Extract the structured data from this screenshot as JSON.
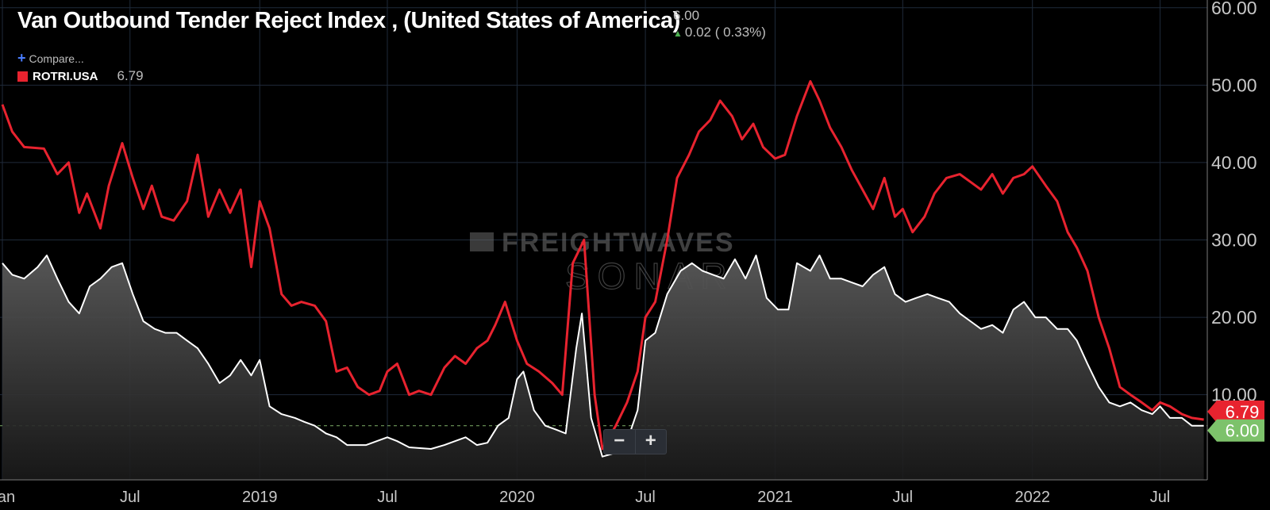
{
  "header": {
    "title": "Van Outbound Tender Reject Index , (United States of America)",
    "last_value": "6.00",
    "change": "0.02 ( 0.33%)",
    "compare_label": "Compare...",
    "legend_symbol": "ROTRI.USA",
    "legend_value": "6.79"
  },
  "watermark": {
    "line1": "FREIGHTWAVES",
    "line2": "SONAR"
  },
  "zoom": {
    "minus": "−",
    "plus": "+"
  },
  "chart_data": {
    "type": "line",
    "x_range": [
      "2018-01-01",
      "2022-09-06"
    ],
    "x_ticks": [
      {
        "date": "2018-01-01",
        "label": "Jan"
      },
      {
        "date": "2018-07-01",
        "label": "Jul"
      },
      {
        "date": "2019-01-01",
        "label": "2019"
      },
      {
        "date": "2019-07-01",
        "label": "Jul"
      },
      {
        "date": "2020-01-01",
        "label": "2020"
      },
      {
        "date": "2020-07-01",
        "label": "Jul"
      },
      {
        "date": "2021-01-01",
        "label": "2021"
      },
      {
        "date": "2021-07-01",
        "label": "Jul"
      },
      {
        "date": "2022-01-01",
        "label": "2022"
      },
      {
        "date": "2022-07-01",
        "label": "Jul"
      }
    ],
    "ylim": [
      -1,
      61
    ],
    "y_ticks": [
      "10.00",
      "20.00",
      "30.00",
      "40.00",
      "50.00",
      "60.00"
    ],
    "reference_line": 6,
    "end_labels": [
      {
        "value": "6.79",
        "color": "#e8232f"
      },
      {
        "value": "6.00",
        "color": "#7dc26b"
      }
    ],
    "series": [
      {
        "name": "ROTRI.USA",
        "color": "#e8232f",
        "points": [
          [
            "2018-01-01",
            47.5
          ],
          [
            "2018-01-15",
            44
          ],
          [
            "2018-02-01",
            42
          ],
          [
            "2018-03-01",
            41.8
          ],
          [
            "2018-03-20",
            38.5
          ],
          [
            "2018-04-05",
            40
          ],
          [
            "2018-04-20",
            33.5
          ],
          [
            "2018-05-01",
            36
          ],
          [
            "2018-05-20",
            31.5
          ],
          [
            "2018-06-01",
            37
          ],
          [
            "2018-06-20",
            42.5
          ],
          [
            "2018-07-05",
            38
          ],
          [
            "2018-07-20",
            34
          ],
          [
            "2018-08-01",
            37
          ],
          [
            "2018-08-15",
            33
          ],
          [
            "2018-09-01",
            32.5
          ],
          [
            "2018-09-20",
            35
          ],
          [
            "2018-10-05",
            41
          ],
          [
            "2018-10-20",
            33
          ],
          [
            "2018-11-05",
            36.5
          ],
          [
            "2018-11-20",
            33.5
          ],
          [
            "2018-12-05",
            36.5
          ],
          [
            "2018-12-20",
            26.5
          ],
          [
            "2019-01-01",
            35
          ],
          [
            "2019-01-15",
            31.5
          ],
          [
            "2019-02-01",
            23
          ],
          [
            "2019-02-15",
            21.5
          ],
          [
            "2019-03-01",
            22
          ],
          [
            "2019-03-20",
            21.5
          ],
          [
            "2019-04-05",
            19.5
          ],
          [
            "2019-04-20",
            13
          ],
          [
            "2019-05-05",
            13.5
          ],
          [
            "2019-05-20",
            11
          ],
          [
            "2019-06-05",
            10
          ],
          [
            "2019-06-20",
            10.5
          ],
          [
            "2019-07-01",
            13
          ],
          [
            "2019-07-15",
            14
          ],
          [
            "2019-08-01",
            10
          ],
          [
            "2019-08-15",
            10.5
          ],
          [
            "2019-09-01",
            10
          ],
          [
            "2019-09-20",
            13.5
          ],
          [
            "2019-10-05",
            15
          ],
          [
            "2019-10-20",
            14
          ],
          [
            "2019-11-05",
            16
          ],
          [
            "2019-11-20",
            17
          ],
          [
            "2019-12-01",
            19
          ],
          [
            "2019-12-15",
            22
          ],
          [
            "2020-01-01",
            17
          ],
          [
            "2020-01-15",
            14
          ],
          [
            "2020-02-01",
            13
          ],
          [
            "2020-02-20",
            11.5
          ],
          [
            "2020-03-05",
            10
          ],
          [
            "2020-03-20",
            27
          ],
          [
            "2020-04-05",
            30
          ],
          [
            "2020-04-20",
            10
          ],
          [
            "2020-05-01",
            3
          ],
          [
            "2020-05-20",
            6
          ],
          [
            "2020-06-05",
            9
          ],
          [
            "2020-06-20",
            13
          ],
          [
            "2020-07-01",
            20
          ],
          [
            "2020-07-15",
            22
          ],
          [
            "2020-08-01",
            30
          ],
          [
            "2020-08-15",
            38
          ],
          [
            "2020-09-01",
            41
          ],
          [
            "2020-09-15",
            44
          ],
          [
            "2020-10-01",
            45.5
          ],
          [
            "2020-10-15",
            48
          ],
          [
            "2020-11-01",
            46
          ],
          [
            "2020-11-15",
            43
          ],
          [
            "2020-12-01",
            45
          ],
          [
            "2020-12-15",
            42
          ],
          [
            "2021-01-01",
            40.5
          ],
          [
            "2021-01-15",
            41
          ],
          [
            "2021-02-01",
            46
          ],
          [
            "2021-02-20",
            50.5
          ],
          [
            "2021-03-05",
            48
          ],
          [
            "2021-03-20",
            44.5
          ],
          [
            "2021-04-05",
            42
          ],
          [
            "2021-04-20",
            39
          ],
          [
            "2021-05-05",
            36.5
          ],
          [
            "2021-05-20",
            34
          ],
          [
            "2021-06-05",
            38
          ],
          [
            "2021-06-20",
            33
          ],
          [
            "2021-07-01",
            34
          ],
          [
            "2021-07-15",
            31
          ],
          [
            "2021-08-01",
            33
          ],
          [
            "2021-08-15",
            36
          ],
          [
            "2021-09-01",
            38
          ],
          [
            "2021-09-20",
            38.5
          ],
          [
            "2021-10-05",
            37.5
          ],
          [
            "2021-10-20",
            36.5
          ],
          [
            "2021-11-05",
            38.5
          ],
          [
            "2021-11-20",
            36
          ],
          [
            "2021-12-05",
            38
          ],
          [
            "2021-12-20",
            38.5
          ],
          [
            "2022-01-01",
            39.5
          ],
          [
            "2022-01-20",
            37
          ],
          [
            "2022-02-05",
            35
          ],
          [
            "2022-02-20",
            31
          ],
          [
            "2022-03-05",
            29
          ],
          [
            "2022-03-20",
            26
          ],
          [
            "2022-04-05",
            20
          ],
          [
            "2022-04-20",
            16
          ],
          [
            "2022-05-05",
            11
          ],
          [
            "2022-05-20",
            10
          ],
          [
            "2022-06-05",
            9
          ],
          [
            "2022-06-20",
            8
          ],
          [
            "2022-07-01",
            9
          ],
          [
            "2022-07-15",
            8.5
          ],
          [
            "2022-08-01",
            7.5
          ],
          [
            "2022-08-15",
            7
          ],
          [
            "2022-09-01",
            6.79
          ]
        ]
      },
      {
        "name": "",
        "color": "#ffffff",
        "area": true,
        "points": [
          [
            "2018-01-01",
            27
          ],
          [
            "2018-01-15",
            25.5
          ],
          [
            "2018-02-01",
            25
          ],
          [
            "2018-02-20",
            26.5
          ],
          [
            "2018-03-05",
            28
          ],
          [
            "2018-03-20",
            25
          ],
          [
            "2018-04-05",
            22
          ],
          [
            "2018-04-20",
            20.5
          ],
          [
            "2018-05-05",
            24
          ],
          [
            "2018-05-20",
            25
          ],
          [
            "2018-06-05",
            26.5
          ],
          [
            "2018-06-20",
            27
          ],
          [
            "2018-07-05",
            23
          ],
          [
            "2018-07-20",
            19.5
          ],
          [
            "2018-08-05",
            18.5
          ],
          [
            "2018-08-20",
            18
          ],
          [
            "2018-09-05",
            18
          ],
          [
            "2018-09-20",
            17
          ],
          [
            "2018-10-05",
            16
          ],
          [
            "2018-10-20",
            14
          ],
          [
            "2018-11-05",
            11.5
          ],
          [
            "2018-11-20",
            12.5
          ],
          [
            "2018-12-05",
            14.5
          ],
          [
            "2018-12-20",
            12.5
          ],
          [
            "2019-01-01",
            14.5
          ],
          [
            "2019-01-15",
            8.5
          ],
          [
            "2019-02-01",
            7.5
          ],
          [
            "2019-02-20",
            7
          ],
          [
            "2019-03-05",
            6.5
          ],
          [
            "2019-03-20",
            6
          ],
          [
            "2019-04-05",
            5
          ],
          [
            "2019-04-20",
            4.5
          ],
          [
            "2019-05-05",
            3.5
          ],
          [
            "2019-06-01",
            3.5
          ],
          [
            "2019-07-01",
            4.5
          ],
          [
            "2019-07-15",
            4
          ],
          [
            "2019-08-01",
            3.2
          ],
          [
            "2019-09-01",
            3
          ],
          [
            "2019-09-20",
            3.5
          ],
          [
            "2019-10-05",
            4
          ],
          [
            "2019-10-20",
            4.5
          ],
          [
            "2019-11-05",
            3.5
          ],
          [
            "2019-11-20",
            3.8
          ],
          [
            "2019-12-05",
            6
          ],
          [
            "2019-12-20",
            7
          ],
          [
            "2020-01-01",
            12
          ],
          [
            "2020-01-10",
            13
          ],
          [
            "2020-01-25",
            8
          ],
          [
            "2020-02-10",
            6
          ],
          [
            "2020-02-25",
            5.5
          ],
          [
            "2020-03-10",
            5
          ],
          [
            "2020-03-25",
            16
          ],
          [
            "2020-04-02",
            20.5
          ],
          [
            "2020-04-15",
            7
          ],
          [
            "2020-05-01",
            2
          ],
          [
            "2020-05-20",
            2.5
          ],
          [
            "2020-06-05",
            4
          ],
          [
            "2020-06-20",
            8
          ],
          [
            "2020-07-01",
            17
          ],
          [
            "2020-07-15",
            18
          ],
          [
            "2020-08-01",
            23
          ],
          [
            "2020-08-20",
            26
          ],
          [
            "2020-09-05",
            27
          ],
          [
            "2020-09-20",
            26
          ],
          [
            "2020-10-05",
            25.5
          ],
          [
            "2020-10-20",
            25
          ],
          [
            "2020-11-05",
            27.5
          ],
          [
            "2020-11-20",
            25
          ],
          [
            "2020-12-05",
            28
          ],
          [
            "2020-12-20",
            22.5
          ],
          [
            "2021-01-05",
            21
          ],
          [
            "2021-01-20",
            21
          ],
          [
            "2021-02-01",
            27
          ],
          [
            "2021-02-20",
            26
          ],
          [
            "2021-03-05",
            28
          ],
          [
            "2021-03-20",
            25
          ],
          [
            "2021-04-05",
            25
          ],
          [
            "2021-04-20",
            24.5
          ],
          [
            "2021-05-05",
            24
          ],
          [
            "2021-05-20",
            25.5
          ],
          [
            "2021-06-05",
            26.5
          ],
          [
            "2021-06-20",
            23
          ],
          [
            "2021-07-05",
            22
          ],
          [
            "2021-07-20",
            22.5
          ],
          [
            "2021-08-05",
            23
          ],
          [
            "2021-08-20",
            22.5
          ],
          [
            "2021-09-05",
            22
          ],
          [
            "2021-09-20",
            20.5
          ],
          [
            "2021-10-05",
            19.5
          ],
          [
            "2021-10-20",
            18.5
          ],
          [
            "2021-11-05",
            19
          ],
          [
            "2021-11-20",
            18
          ],
          [
            "2021-12-05",
            21
          ],
          [
            "2021-12-20",
            22
          ],
          [
            "2022-01-05",
            20
          ],
          [
            "2022-01-20",
            20
          ],
          [
            "2022-02-05",
            18.5
          ],
          [
            "2022-02-20",
            18.5
          ],
          [
            "2022-03-05",
            17
          ],
          [
            "2022-03-20",
            14
          ],
          [
            "2022-04-05",
            11
          ],
          [
            "2022-04-20",
            9
          ],
          [
            "2022-05-05",
            8.5
          ],
          [
            "2022-05-20",
            9
          ],
          [
            "2022-06-05",
            8
          ],
          [
            "2022-06-20",
            7.5
          ],
          [
            "2022-07-01",
            8.5
          ],
          [
            "2022-07-15",
            7
          ],
          [
            "2022-08-01",
            7
          ],
          [
            "2022-08-15",
            6
          ],
          [
            "2022-09-01",
            6
          ]
        ]
      }
    ]
  }
}
